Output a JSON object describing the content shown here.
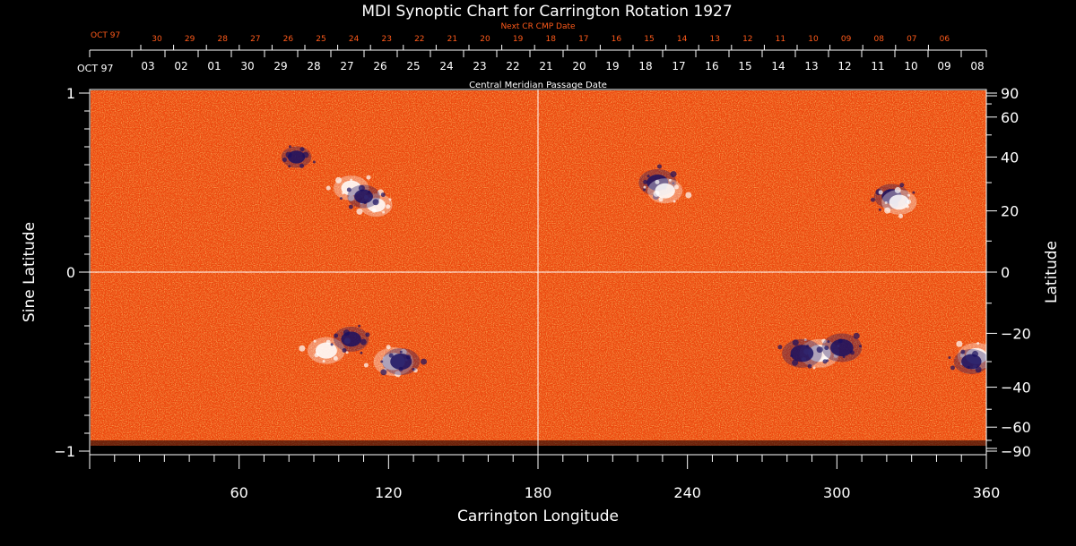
{
  "chart_data": {
    "type": "heatmap",
    "title": "MDI Synoptic Chart for Carrington Rotation 1927",
    "xlabel": "Carrington Longitude",
    "ylabel_left": "Sine Latitude",
    "ylabel_right": "Latitude",
    "xlim": [
      0,
      360
    ],
    "ylim": [
      -1,
      1
    ],
    "x_ticks": [
      60,
      120,
      180,
      240,
      300,
      360
    ],
    "y_ticks_left": [
      {
        "v": 1,
        "label": "1"
      },
      {
        "v": 0,
        "label": "0"
      },
      {
        "v": -1,
        "label": "−1"
      }
    ],
    "y_ticks_right": [
      90,
      60,
      40,
      20,
      0,
      -20,
      -40,
      -60,
      -90
    ],
    "grid_longitudes": [
      180
    ],
    "grid_sine_latitudes": [
      0
    ],
    "top_axis": {
      "caption": "Central Meridian Passage Date",
      "month_label": "OCT 97",
      "dates": [
        "03",
        "02",
        "01",
        "30",
        "29",
        "28",
        "27",
        "26",
        "25",
        "24",
        "23",
        "22",
        "21",
        "20",
        "19",
        "18",
        "17",
        "16",
        "15",
        "14",
        "13",
        "12",
        "11",
        "10",
        "09",
        "08"
      ]
    },
    "next_axis": {
      "caption": "Next CR CMP Date",
      "month_label": "OCT 97",
      "dates": [
        "30",
        "29",
        "28",
        "27",
        "26",
        "25",
        "24",
        "23",
        "22",
        "21",
        "20",
        "19",
        "18",
        "17",
        "16",
        "15",
        "14",
        "13",
        "12",
        "11",
        "10",
        "09",
        "08",
        "07",
        "06"
      ]
    },
    "colors": {
      "background_field": "#ef4a10",
      "positive": "#ffffff",
      "negative": "#1a1060",
      "axis": "#ffffff",
      "next_axis": "#ff5a1a"
    },
    "active_regions": [
      {
        "lon": 105,
        "lat_deg": 28,
        "polarity": "positive",
        "strength": 0.8
      },
      {
        "lon": 115,
        "lat_deg": 22,
        "polarity": "positive",
        "strength": 0.7
      },
      {
        "lon": 83,
        "lat_deg": 40,
        "polarity": "negative",
        "strength": 0.6
      },
      {
        "lon": 110,
        "lat_deg": 25,
        "polarity": "negative",
        "strength": 0.7
      },
      {
        "lon": 228,
        "lat_deg": 30,
        "polarity": "negative",
        "strength": 0.9
      },
      {
        "lon": 231,
        "lat_deg": 27,
        "polarity": "positive",
        "strength": 0.8
      },
      {
        "lon": 322,
        "lat_deg": 25,
        "polarity": "negative",
        "strength": 0.8
      },
      {
        "lon": 325,
        "lat_deg": 23,
        "polarity": "positive",
        "strength": 0.8
      },
      {
        "lon": 95,
        "lat_deg": -26,
        "polarity": "positive",
        "strength": 0.9
      },
      {
        "lon": 105,
        "lat_deg": -22,
        "polarity": "negative",
        "strength": 0.8
      },
      {
        "lon": 122,
        "lat_deg": -30,
        "polarity": "positive",
        "strength": 1.0
      },
      {
        "lon": 125,
        "lat_deg": -30,
        "polarity": "negative",
        "strength": 0.9
      },
      {
        "lon": 293,
        "lat_deg": -27,
        "polarity": "positive",
        "strength": 1.0
      },
      {
        "lon": 286,
        "lat_deg": -27,
        "polarity": "negative",
        "strength": 1.0
      },
      {
        "lon": 302,
        "lat_deg": -25,
        "polarity": "negative",
        "strength": 1.0
      },
      {
        "lon": 356,
        "lat_deg": -28,
        "polarity": "positive",
        "strength": 0.9
      },
      {
        "lon": 354,
        "lat_deg": -30,
        "polarity": "negative",
        "strength": 0.8
      }
    ]
  }
}
